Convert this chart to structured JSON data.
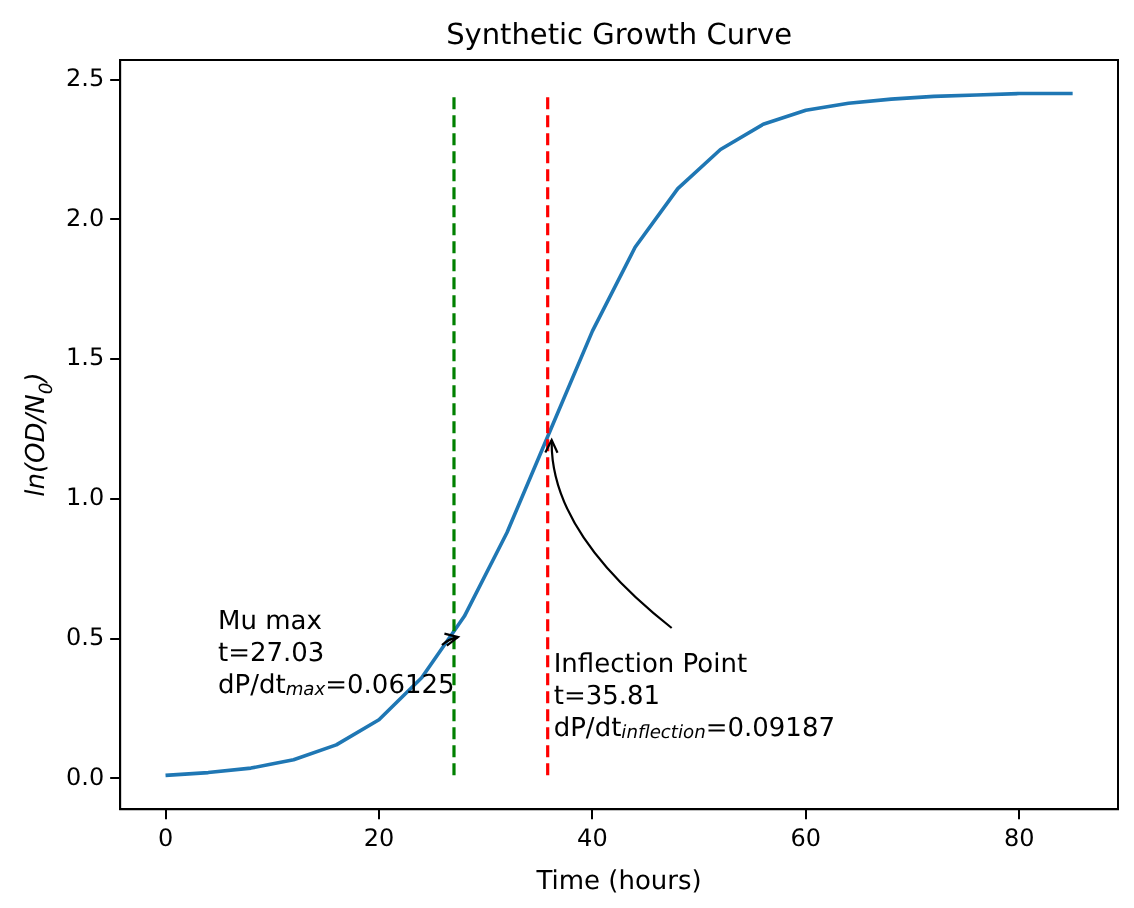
{
  "chart_data": {
    "type": "line",
    "title": "Synthetic Growth Curve",
    "xlabel": "Time (hours)",
    "ylabel": "ln(OD/N$_{0}$)",
    "x": [
      0,
      4,
      8,
      12,
      16,
      20,
      24,
      28,
      32,
      36,
      40,
      44,
      48,
      52,
      56,
      60,
      64,
      68,
      72,
      76,
      80,
      85
    ],
    "values": [
      0.011,
      0.021,
      0.037,
      0.067,
      0.12,
      0.21,
      0.36,
      0.58,
      0.88,
      1.24,
      1.6,
      1.9,
      2.11,
      2.25,
      2.34,
      2.39,
      2.415,
      2.43,
      2.44,
      2.445,
      2.45,
      2.45
    ],
    "color": "#1f77b4",
    "marker": "none",
    "line_style": "solid",
    "grid": false,
    "legend": false,
    "xlim": [
      -4.25,
      89.25
    ],
    "xticks": [
      0,
      20,
      40,
      60,
      80
    ],
    "ylim": [
      -0.11,
      2.57
    ],
    "yticks": [
      {
        "value": 0,
        "label": "0.0"
      },
      {
        "value": 0.5,
        "label": "0.5"
      },
      {
        "value": 1,
        "label": "1.0"
      },
      {
        "value": 1.5,
        "label": "1.5"
      },
      {
        "value": 2,
        "label": "2.0"
      },
      {
        "value": 2.5,
        "label": "2.5"
      }
    ],
    "ref_lines": [
      {
        "axis": "x",
        "value": 27.03,
        "color": "#008000",
        "line_style": "dashed"
      },
      {
        "axis": "x",
        "value": 35.81,
        "color": "#ff0000",
        "line_style": "dashed"
      }
    ],
    "annotations": [
      {
        "text": "Mu max\nt=27.03\ndP/dt$_{max}$=0.06125",
        "x": 27.03,
        "y": 0.52
      },
      {
        "text": "Inflection Point\nt=35.81\ndP/dt$_{inflection}$=0.09187",
        "x": 35.81,
        "y": 1.225
      }
    ]
  }
}
